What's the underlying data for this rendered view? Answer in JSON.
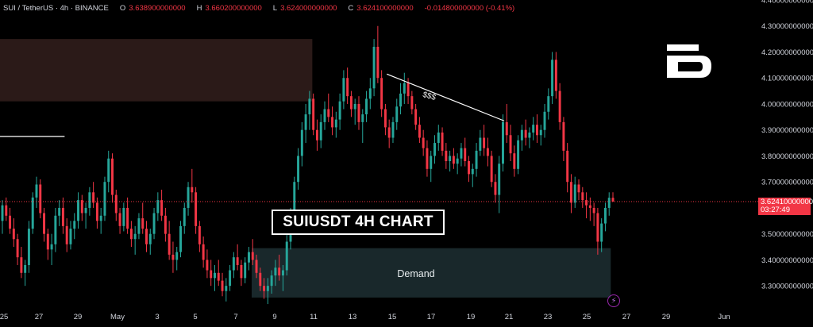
{
  "header": {
    "symbol": "SUI / TetherUS · 4h · BINANCE",
    "o_label": "O",
    "o_value": "3.638900000000",
    "h_label": "H",
    "h_value": "3.660200000000",
    "l_label": "L",
    "l_value": "3.624000000000",
    "c_label": "C",
    "c_value": "3.624100000000",
    "change": "-0.014800000000 (-0.41%)"
  },
  "colors": {
    "up": "#26a69a",
    "down": "#f23645",
    "background": "#000000",
    "supply_zone": "#2b1a18",
    "demand_zone": "#19282b"
  },
  "annotations": {
    "title_box": "SUIUSDT 4H CHART",
    "demand_label": "Demand",
    "liquidity_label": "$$$"
  },
  "price_tag": {
    "price": "3.624100000000",
    "countdown": "03:27:49"
  },
  "logo_icon": "brand-b-logo",
  "bolt_icon": "lightning-icon",
  "chart_data": {
    "type": "candlestick",
    "instrument": "SUI / TetherUS",
    "timeframe": "4h",
    "exchange": "BINANCE",
    "ylim": [
      3.22,
      4.38
    ],
    "y_ticks": [
      {
        "v": 4.4,
        "label": "4.400000000000"
      },
      {
        "v": 4.3,
        "label": "4.300000000000"
      },
      {
        "v": 4.2,
        "label": "4.200000000000"
      },
      {
        "v": 4.1,
        "label": "4.100000000000"
      },
      {
        "v": 4.0,
        "label": "4.000000000000"
      },
      {
        "v": 3.9,
        "label": "3.900000000000"
      },
      {
        "v": 3.8,
        "label": "3.800000000000"
      },
      {
        "v": 3.7,
        "label": "3.700000000000"
      },
      {
        "v": 3.5,
        "label": "3.500000000000"
      },
      {
        "v": 3.4,
        "label": "3.400000000000"
      },
      {
        "v": 3.3,
        "label": "3.300000000000"
      }
    ],
    "x_ticks": [
      "25",
      "27",
      "29",
      "May",
      "3",
      "5",
      "7",
      "9",
      "11",
      "13",
      "15",
      "17",
      "19",
      "21",
      "23",
      "25",
      "27",
      "29",
      "Jun"
    ],
    "current_price": 3.6241,
    "supply_zone": {
      "from_date": "Apr 24",
      "to_date": "May 10",
      "low": 4.01,
      "high": 4.25
    },
    "demand_zone": {
      "from_date": "May 7",
      "to_date": "May 25",
      "low": 3.255,
      "high": 3.445
    },
    "horizontal_level": {
      "from_date": "Apr 24",
      "to_date": "Apr 28",
      "price": 3.875
    },
    "trendline": {
      "from_date": "May 14",
      "from_price": 4.115,
      "to_date": "May 20",
      "to_price": 3.935
    },
    "candles": [
      [
        3.55,
        3.63,
        3.5,
        3.61
      ],
      [
        3.61,
        3.64,
        3.55,
        3.57
      ],
      [
        3.57,
        3.6,
        3.5,
        3.52
      ],
      [
        3.52,
        3.56,
        3.45,
        3.48
      ],
      [
        3.48,
        3.5,
        3.38,
        3.41
      ],
      [
        3.41,
        3.45,
        3.33,
        3.35
      ],
      [
        3.35,
        3.4,
        3.3,
        3.38
      ],
      [
        3.38,
        3.55,
        3.35,
        3.52
      ],
      [
        3.52,
        3.66,
        3.5,
        3.64
      ],
      [
        3.64,
        3.72,
        3.6,
        3.69
      ],
      [
        3.69,
        3.71,
        3.56,
        3.58
      ],
      [
        3.58,
        3.6,
        3.47,
        3.5
      ],
      [
        3.5,
        3.52,
        3.4,
        3.44
      ],
      [
        3.44,
        3.5,
        3.38,
        3.46
      ],
      [
        3.46,
        3.6,
        3.43,
        3.57
      ],
      [
        3.57,
        3.63,
        3.53,
        3.6
      ],
      [
        3.6,
        3.64,
        3.5,
        3.53
      ],
      [
        3.53,
        3.56,
        3.43,
        3.46
      ],
      [
        3.46,
        3.55,
        3.44,
        3.52
      ],
      [
        3.52,
        3.58,
        3.48,
        3.55
      ],
      [
        3.55,
        3.66,
        3.52,
        3.63
      ],
      [
        3.63,
        3.65,
        3.55,
        3.58
      ],
      [
        3.58,
        3.62,
        3.52,
        3.6
      ],
      [
        3.6,
        3.68,
        3.57,
        3.66
      ],
      [
        3.66,
        3.7,
        3.6,
        3.62
      ],
      [
        3.62,
        3.64,
        3.52,
        3.55
      ],
      [
        3.55,
        3.6,
        3.5,
        3.57
      ],
      [
        3.57,
        3.72,
        3.55,
        3.7
      ],
      [
        3.7,
        3.82,
        3.66,
        3.79
      ],
      [
        3.79,
        3.81,
        3.62,
        3.65
      ],
      [
        3.65,
        3.67,
        3.55,
        3.58
      ],
      [
        3.58,
        3.6,
        3.5,
        3.53
      ],
      [
        3.53,
        3.62,
        3.51,
        3.6
      ],
      [
        3.6,
        3.64,
        3.5,
        3.52
      ],
      [
        3.52,
        3.55,
        3.45,
        3.48
      ],
      [
        3.48,
        3.53,
        3.42,
        3.5
      ],
      [
        3.5,
        3.58,
        3.48,
        3.56
      ],
      [
        3.56,
        3.62,
        3.5,
        3.52
      ],
      [
        3.52,
        3.55,
        3.43,
        3.46
      ],
      [
        3.46,
        3.52,
        3.42,
        3.5
      ],
      [
        3.5,
        3.6,
        3.48,
        3.58
      ],
      [
        3.58,
        3.66,
        3.55,
        3.63
      ],
      [
        3.63,
        3.67,
        3.55,
        3.57
      ],
      [
        3.57,
        3.6,
        3.47,
        3.5
      ],
      [
        3.5,
        3.55,
        3.4,
        3.42
      ],
      [
        3.42,
        3.47,
        3.35,
        3.4
      ],
      [
        3.4,
        3.45,
        3.36,
        3.43
      ],
      [
        3.43,
        3.55,
        3.41,
        3.53
      ],
      [
        3.53,
        3.62,
        3.5,
        3.6
      ],
      [
        3.6,
        3.7,
        3.57,
        3.68
      ],
      [
        3.68,
        3.75,
        3.62,
        3.66
      ],
      [
        3.66,
        3.68,
        3.5,
        3.53
      ],
      [
        3.53,
        3.55,
        3.43,
        3.46
      ],
      [
        3.46,
        3.49,
        3.37,
        3.4
      ],
      [
        3.4,
        3.44,
        3.33,
        3.36
      ],
      [
        3.36,
        3.4,
        3.3,
        3.33
      ],
      [
        3.33,
        3.38,
        3.28,
        3.35
      ],
      [
        3.35,
        3.4,
        3.3,
        3.32
      ],
      [
        3.32,
        3.35,
        3.26,
        3.28
      ],
      [
        3.28,
        3.33,
        3.24,
        3.3
      ],
      [
        3.3,
        3.38,
        3.28,
        3.36
      ],
      [
        3.36,
        3.43,
        3.33,
        3.41
      ],
      [
        3.41,
        3.46,
        3.36,
        3.38
      ],
      [
        3.38,
        3.4,
        3.3,
        3.33
      ],
      [
        3.33,
        3.41,
        3.31,
        3.39
      ],
      [
        3.39,
        3.45,
        3.36,
        3.43
      ],
      [
        3.43,
        3.48,
        3.38,
        3.4
      ],
      [
        3.4,
        3.42,
        3.33,
        3.35
      ],
      [
        3.35,
        3.37,
        3.28,
        3.3
      ],
      [
        3.3,
        3.33,
        3.25,
        3.28
      ],
      [
        3.28,
        3.33,
        3.23,
        3.3
      ],
      [
        3.3,
        3.36,
        3.27,
        3.34
      ],
      [
        3.34,
        3.4,
        3.3,
        3.37
      ],
      [
        3.37,
        3.42,
        3.32,
        3.34
      ],
      [
        3.34,
        3.38,
        3.28,
        3.36
      ],
      [
        3.36,
        3.5,
        3.34,
        3.47
      ],
      [
        3.47,
        3.6,
        3.44,
        3.57
      ],
      [
        3.57,
        3.72,
        3.55,
        3.7
      ],
      [
        3.7,
        3.83,
        3.67,
        3.8
      ],
      [
        3.8,
        3.93,
        3.76,
        3.9
      ],
      [
        3.9,
        4.0,
        3.85,
        3.96
      ],
      [
        3.96,
        4.05,
        3.9,
        4.02
      ],
      [
        4.02,
        4.04,
        3.88,
        3.9
      ],
      [
        3.9,
        3.94,
        3.82,
        3.86
      ],
      [
        3.86,
        3.96,
        3.83,
        3.93
      ],
      [
        3.93,
        4.01,
        3.9,
        3.98
      ],
      [
        3.98,
        4.04,
        3.93,
        3.95
      ],
      [
        3.95,
        3.99,
        3.88,
        3.91
      ],
      [
        3.91,
        3.97,
        3.87,
        3.94
      ],
      [
        3.94,
        4.04,
        3.9,
        4.01
      ],
      [
        4.01,
        4.13,
        3.98,
        4.1
      ],
      [
        4.1,
        4.14,
        4.0,
        4.03
      ],
      [
        4.03,
        4.05,
        3.95,
        3.98
      ],
      [
        3.98,
        4.02,
        3.92,
        4.0
      ],
      [
        4.0,
        4.03,
        3.9,
        3.93
      ],
      [
        3.93,
        3.98,
        3.85,
        3.96
      ],
      [
        3.96,
        4.05,
        3.93,
        4.02
      ],
      [
        4.02,
        4.1,
        3.98,
        4.06
      ],
      [
        4.06,
        4.25,
        4.03,
        4.22
      ],
      [
        4.22,
        4.3,
        4.08,
        4.1
      ],
      [
        4.1,
        4.13,
        3.95,
        3.98
      ],
      [
        3.98,
        4.0,
        3.88,
        3.91
      ],
      [
        3.91,
        3.94,
        3.83,
        3.87
      ],
      [
        3.87,
        3.95,
        3.85,
        3.93
      ],
      [
        3.93,
        4.02,
        3.9,
        3.99
      ],
      [
        3.99,
        4.08,
        3.96,
        4.04
      ],
      [
        4.04,
        4.12,
        4.0,
        4.08
      ],
      [
        4.08,
        4.1,
        4.0,
        4.03
      ],
      [
        4.03,
        4.05,
        3.96,
        3.98
      ],
      [
        3.98,
        4.0,
        3.9,
        3.92
      ],
      [
        3.92,
        3.95,
        3.85,
        3.87
      ],
      [
        3.87,
        3.9,
        3.8,
        3.83
      ],
      [
        3.83,
        3.86,
        3.72,
        3.75
      ],
      [
        3.75,
        3.82,
        3.7,
        3.8
      ],
      [
        3.8,
        3.88,
        3.77,
        3.85
      ],
      [
        3.85,
        3.92,
        3.82,
        3.89
      ],
      [
        3.89,
        3.91,
        3.8,
        3.82
      ],
      [
        3.82,
        3.85,
        3.75,
        3.78
      ],
      [
        3.78,
        3.82,
        3.74,
        3.8
      ],
      [
        3.8,
        3.83,
        3.75,
        3.77
      ],
      [
        3.77,
        3.81,
        3.73,
        3.79
      ],
      [
        3.79,
        3.85,
        3.76,
        3.83
      ],
      [
        3.83,
        3.87,
        3.76,
        3.78
      ],
      [
        3.78,
        3.8,
        3.7,
        3.73
      ],
      [
        3.73,
        3.77,
        3.68,
        3.75
      ],
      [
        3.75,
        3.85,
        3.72,
        3.82
      ],
      [
        3.82,
        3.9,
        3.8,
        3.87
      ],
      [
        3.87,
        3.92,
        3.8,
        3.83
      ],
      [
        3.83,
        3.87,
        3.76,
        3.8
      ],
      [
        3.8,
        3.82,
        3.68,
        3.7
      ],
      [
        3.7,
        3.73,
        3.62,
        3.65
      ],
      [
        3.65,
        3.8,
        3.58,
        3.77
      ],
      [
        3.77,
        3.96,
        3.74,
        3.93
      ],
      [
        3.93,
        4.0,
        3.85,
        3.88
      ],
      [
        3.88,
        3.92,
        3.78,
        3.81
      ],
      [
        3.81,
        3.84,
        3.72,
        3.75
      ],
      [
        3.75,
        3.88,
        3.73,
        3.86
      ],
      [
        3.86,
        3.92,
        3.82,
        3.9
      ],
      [
        3.9,
        3.94,
        3.84,
        3.87
      ],
      [
        3.87,
        3.91,
        3.83,
        3.89
      ],
      [
        3.89,
        3.95,
        3.86,
        3.92
      ],
      [
        3.92,
        3.96,
        3.85,
        3.88
      ],
      [
        3.88,
        3.92,
        3.84,
        3.9
      ],
      [
        3.9,
        4.0,
        3.87,
        3.97
      ],
      [
        3.97,
        4.06,
        3.94,
        4.03
      ],
      [
        4.03,
        4.2,
        4.0,
        4.17
      ],
      [
        4.17,
        4.2,
        4.02,
        4.05
      ],
      [
        4.05,
        4.08,
        3.9,
        3.93
      ],
      [
        3.93,
        3.95,
        3.78,
        3.82
      ],
      [
        3.82,
        3.85,
        3.66,
        3.7
      ],
      [
        3.7,
        3.73,
        3.58,
        3.62
      ],
      [
        3.62,
        3.72,
        3.6,
        3.69
      ],
      [
        3.69,
        3.71,
        3.63,
        3.66
      ],
      [
        3.66,
        3.68,
        3.6,
        3.63
      ],
      [
        3.63,
        3.66,
        3.56,
        3.61
      ],
      [
        3.61,
        3.64,
        3.55,
        3.6
      ],
      [
        3.6,
        3.62,
        3.53,
        3.58
      ],
      [
        3.58,
        3.6,
        3.42,
        3.47
      ],
      [
        3.47,
        3.56,
        3.43,
        3.54
      ],
      [
        3.54,
        3.62,
        3.51,
        3.6
      ],
      [
        3.6,
        3.66,
        3.57,
        3.639
      ],
      [
        3.639,
        3.6602,
        3.624,
        3.6241
      ]
    ]
  }
}
